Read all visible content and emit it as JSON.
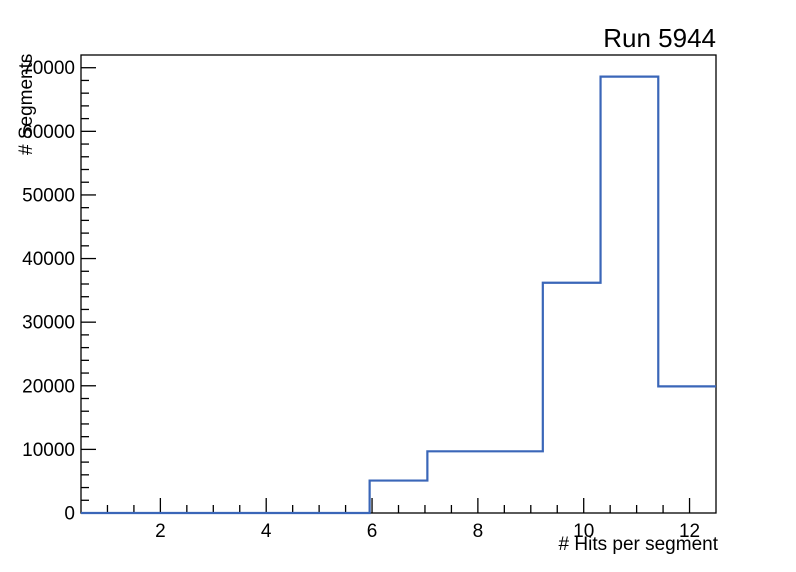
{
  "page": {
    "background": "#ffffff"
  },
  "chart_data": {
    "type": "bar",
    "subtype": "step-histogram",
    "title": "Run 5944",
    "xlabel": "# Hits per segment",
    "ylabel": "# Segments",
    "xlim": [
      0.5,
      12.5
    ],
    "ylim": [
      0,
      72000
    ],
    "bin_edges": [
      0.5,
      1.5909,
      2.6818,
      3.7727,
      4.8636,
      5.9545,
      7.0455,
      8.1364,
      9.2273,
      10.3182,
      11.4091,
      12.5
    ],
    "values": [
      0,
      0,
      0,
      0,
      0,
      5100,
      9700,
      9700,
      36200,
      68600,
      19900
    ],
    "x_major_ticks": [
      2,
      4,
      6,
      8,
      10,
      12
    ],
    "x_minor_step": 0.5,
    "y_major_ticks": [
      0,
      10000,
      20000,
      30000,
      40000,
      50000,
      60000,
      70000
    ],
    "y_minor_step": 2000,
    "grid": false,
    "legend": null,
    "line_color": "#3a66b8",
    "axis_color": "#000000",
    "text_color": "#000000"
  }
}
